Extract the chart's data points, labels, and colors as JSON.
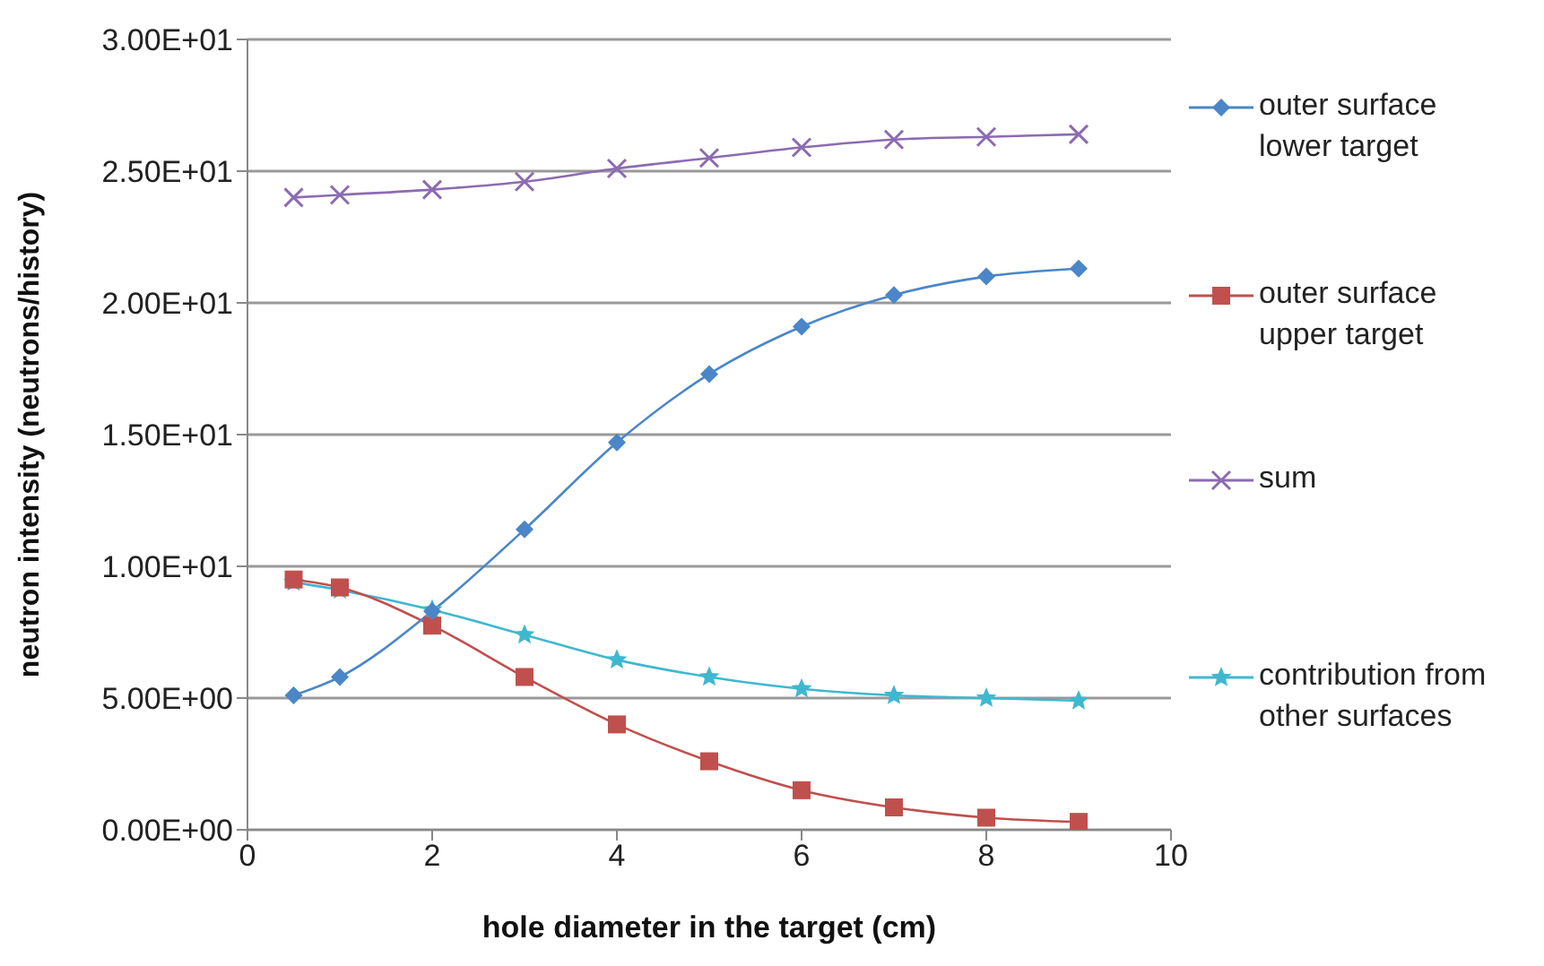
{
  "chart_data": {
    "type": "line",
    "xlabel": "hole diameter in the target (cm)",
    "ylabel": "neutron intensity (neutrons/history)",
    "x": [
      0.5,
      1,
      2,
      3,
      4,
      5,
      6,
      7,
      8,
      9
    ],
    "series": [
      {
        "name": "outer surface lower target",
        "color": "#4a86c8",
        "marker": "diamond",
        "values": [
          5.1,
          5.8,
          8.3,
          11.4,
          14.7,
          17.3,
          19.1,
          20.3,
          21.0,
          21.3
        ]
      },
      {
        "name": "outer surface upper target",
        "color": "#c0504d",
        "marker": "square",
        "values": [
          9.5,
          9.2,
          7.75,
          5.8,
          4.0,
          2.6,
          1.5,
          0.85,
          0.46,
          0.3
        ]
      },
      {
        "name": "sum",
        "color": "#8c6bb1",
        "marker": "cross",
        "values": [
          24.0,
          24.1,
          24.3,
          24.6,
          25.1,
          25.5,
          25.9,
          26.2,
          26.3,
          26.4
        ]
      },
      {
        "name": "contribution from other surfaces",
        "color": "#3fb8cf",
        "marker": "star",
        "values": [
          9.4,
          9.1,
          8.35,
          7.4,
          6.45,
          5.8,
          5.35,
          5.1,
          5.0,
          4.9
        ]
      }
    ],
    "xlim": [
      0,
      10
    ],
    "xticks": [
      0,
      2,
      4,
      6,
      8,
      10
    ],
    "ylim": [
      0,
      30
    ],
    "yticks": [
      {
        "value": 0,
        "label": "0.00E+00"
      },
      {
        "value": 5,
        "label": "5.00E+00"
      },
      {
        "value": 10,
        "label": "1.00E+01"
      },
      {
        "value": 15,
        "label": "1.50E+01"
      },
      {
        "value": 20,
        "label": "2.00E+01"
      },
      {
        "value": 25,
        "label": "2.50E+01"
      },
      {
        "value": 30,
        "label": "3.00E+01"
      }
    ],
    "grid": "y",
    "legend": "right"
  }
}
